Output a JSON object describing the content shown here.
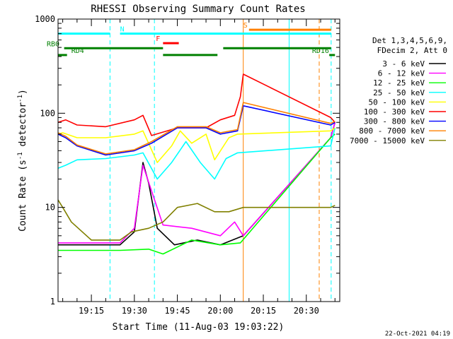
{
  "chart_data": {
    "type": "line",
    "title": "RHESSI Observing Summary Count Rates",
    "xlabel": "Start Time (11-Aug-03 19:03:22)",
    "ylabel_main": "Count Rate (s",
    "ylabel_sup1": "-1",
    "ylabel_mid": " detector",
    "ylabel_sup2": "-1",
    "ylabel_end": ")",
    "y_scale": "log",
    "ylim": [
      1,
      1000
    ],
    "xlim": [
      "19:03:22",
      "20:41:40"
    ],
    "x_ticks": [
      "19:15",
      "19:30",
      "19:45",
      "20:00",
      "20:15",
      "20:30"
    ],
    "y_ticks": [
      "1",
      "10",
      "100",
      "1000"
    ],
    "footer_date": "22-Oct-2021 04:19",
    "legend_header": [
      "Det 1,3,4,5,6,9,",
      "FDecim 2, Att 0"
    ],
    "series": [
      {
        "name": "3 - 6 keV",
        "color": "#000000",
        "x": [
          "19:03:22",
          "19:25:00",
          "19:30:00",
          "19:33:00",
          "19:35:00",
          "19:38:00",
          "19:44:00",
          "19:52:00",
          "20:00:00",
          "20:08:00",
          "20:38:30",
          "20:40:00"
        ],
        "y": [
          4.0,
          4.0,
          5.5,
          30.0,
          18.0,
          6.0,
          4.0,
          4.5,
          4.0,
          5.0,
          55.0,
          80.0
        ]
      },
      {
        "name": "6 - 12 keV",
        "color": "#ff00ff",
        "x": [
          "19:03:22",
          "19:25:00",
          "19:30:00",
          "19:33:00",
          "19:36:00",
          "19:40:00",
          "19:50:00",
          "20:00:00",
          "20:05:00",
          "20:08:00",
          "20:38:30",
          "20:40:00"
        ],
        "y": [
          4.2,
          4.2,
          6.0,
          28.0,
          15.0,
          6.5,
          6.0,
          5.0,
          7.0,
          5.0,
          55.0,
          80.0
        ]
      },
      {
        "name": "12 - 25 keV",
        "color": "#00ff00",
        "x": [
          "19:03:22",
          "19:25:00",
          "19:35:00",
          "19:40:00",
          "19:50:00",
          "20:00:00",
          "20:07:00",
          "20:38:30",
          "20:40:00"
        ],
        "y": [
          3.5,
          3.5,
          3.6,
          3.2,
          4.5,
          4.0,
          4.2,
          55.0,
          60.0
        ]
      },
      {
        "name": "25 - 50 keV",
        "color": "#00ffff",
        "x": [
          "19:03:22",
          "19:06:00",
          "19:10:00",
          "19:20:00",
          "19:30:00",
          "19:33:00",
          "19:38:00",
          "19:43:00",
          "19:48:00",
          "19:53:00",
          "19:58:00",
          "20:02:00",
          "20:06:00",
          "20:38:30",
          "20:40:00"
        ],
        "y": [
          26.0,
          28.0,
          32.0,
          33.0,
          36.0,
          38.0,
          20.0,
          30.0,
          50.0,
          30.0,
          20.0,
          33.0,
          38.0,
          45.0,
          70.0
        ]
      },
      {
        "name": "50 - 100 keV",
        "color": "#ffff00",
        "x": [
          "19:03:22",
          "19:05:00",
          "19:10:00",
          "19:20:00",
          "19:30:00",
          "19:33:00",
          "19:38:00",
          "19:43:00",
          "19:46:00",
          "19:50:00",
          "19:55:00",
          "19:58:00",
          "20:03:00",
          "20:06:00",
          "20:38:30",
          "20:40:00"
        ],
        "y": [
          60.0,
          62.0,
          55.0,
          55.0,
          60.0,
          65.0,
          30.0,
          45.0,
          65.0,
          48.0,
          60.0,
          32.0,
          55.0,
          60.0,
          65.0,
          70.0
        ]
      },
      {
        "name": "100 - 300 keV",
        "color": "#ff0000",
        "x": [
          "19:03:22",
          "19:06:00",
          "19:10:00",
          "19:20:00",
          "19:30:00",
          "19:33:00",
          "19:36:00",
          "19:45:00",
          "19:55:00",
          "20:00:00",
          "20:05:00",
          "20:07:00",
          "20:08:00",
          "20:38:30",
          "20:40:00"
        ],
        "y": [
          80.0,
          85.0,
          75.0,
          72.0,
          85.0,
          95.0,
          58.0,
          70.0,
          70.0,
          85.0,
          95.0,
          150.0,
          260.0,
          90.0,
          80.0
        ]
      },
      {
        "name": "300 - 800 keV",
        "color": "#0000ff",
        "x": [
          "19:03:22",
          "19:06:00",
          "19:10:00",
          "19:20:00",
          "19:30:00",
          "19:36:00",
          "19:45:00",
          "19:55:00",
          "20:00:00",
          "20:06:00",
          "20:08:00",
          "20:38:30",
          "20:40:00"
        ],
        "y": [
          60.0,
          55.0,
          45.0,
          36.0,
          40.0,
          48.0,
          70.0,
          70.0,
          60.0,
          65.0,
          120.0,
          75.0,
          80.0
        ]
      },
      {
        "name": "800 - 7000 keV",
        "color": "#ff8000",
        "x": [
          "19:03:22",
          "19:06:00",
          "19:10:00",
          "19:20:00",
          "19:30:00",
          "19:36:00",
          "19:45:00",
          "19:55:00",
          "20:00:00",
          "20:06:00",
          "20:08:00",
          "20:38:30",
          "20:40:00"
        ],
        "y": [
          62.0,
          57.0,
          46.0,
          37.0,
          41.0,
          50.0,
          72.0,
          72.0,
          62.0,
          67.0,
          130.0,
          78.0,
          82.0
        ]
      },
      {
        "name": "7000 - 15000 keV",
        "color": "#808000",
        "x": [
          "19:03:22",
          "19:05:00",
          "19:08:00",
          "19:15:00",
          "19:25:00",
          "19:29:00",
          "19:35:00",
          "19:40:00",
          "19:45:00",
          "19:52:00",
          "19:58:00",
          "20:03:00",
          "20:08:00",
          "20:38:30",
          "20:40:00"
        ],
        "y": [
          12.0,
          10.0,
          7.0,
          4.5,
          4.5,
          5.5,
          6.0,
          7.0,
          10.0,
          11.0,
          9.0,
          9.0,
          10.0,
          10.0,
          10.5
        ]
      }
    ],
    "flag_bars": [
      {
        "label": "N",
        "label_color": "#00ffff",
        "color": "#00ffff",
        "y": 700,
        "segments": [
          [
            "19:03:22",
            "19:21:30"
          ],
          [
            "19:25:00",
            "20:24:00"
          ],
          [
            "20:24:00",
            "20:38:40"
          ]
        ],
        "label_at": "19:25:00"
      },
      {
        "label": "F",
        "label_color": "#ff0000",
        "color": "#ff0000",
        "y": 555,
        "segments": [
          [
            "19:40:00",
            "19:45:30"
          ]
        ],
        "label_at": "19:37:30"
      },
      {
        "label": "S",
        "label_color": "#ff8000",
        "color": "#ff8000",
        "y": 770,
        "segments": [
          [
            "20:10:00",
            "20:38:40"
          ]
        ],
        "label_at": "20:08:00"
      },
      {
        "label": "RB0",
        "label_color": "#008000",
        "color": "#008000",
        "y": 490,
        "segments": [
          [
            "19:05:30",
            "19:40:00"
          ],
          [
            "20:01:00",
            "20:38:40"
          ]
        ],
        "label_at": "18:58:00"
      },
      {
        "label": "RD4",
        "label_color": "#008000",
        "color": "#008000",
        "y": 415,
        "segments": [
          [
            "19:03:22",
            "19:06:30"
          ],
          [
            "19:40:00",
            "19:59:00"
          ]
        ],
        "label_at": "19:08:00"
      },
      {
        "label": "RD16",
        "label_color": "#008000",
        "color": "#008000",
        "y": 415,
        "segments": [
          [
            "20:38:00",
            "20:40:00"
          ]
        ],
        "label_at": "20:32:00"
      }
    ],
    "vlines": [
      {
        "color": "#00ffff",
        "style": "dashed",
        "x": "19:21:30"
      },
      {
        "color": "#00ffff",
        "style": "dashed",
        "x": "19:37:00"
      },
      {
        "color": "#00ffff",
        "style": "solid",
        "x": "20:24:00"
      },
      {
        "color": "#00ffff",
        "style": "dashed",
        "x": "20:38:40"
      },
      {
        "color": "#ff8000",
        "style": "solid",
        "x": "20:08:00"
      },
      {
        "color": "#ff8000",
        "style": "dashed",
        "x": "20:34:30"
      }
    ]
  }
}
